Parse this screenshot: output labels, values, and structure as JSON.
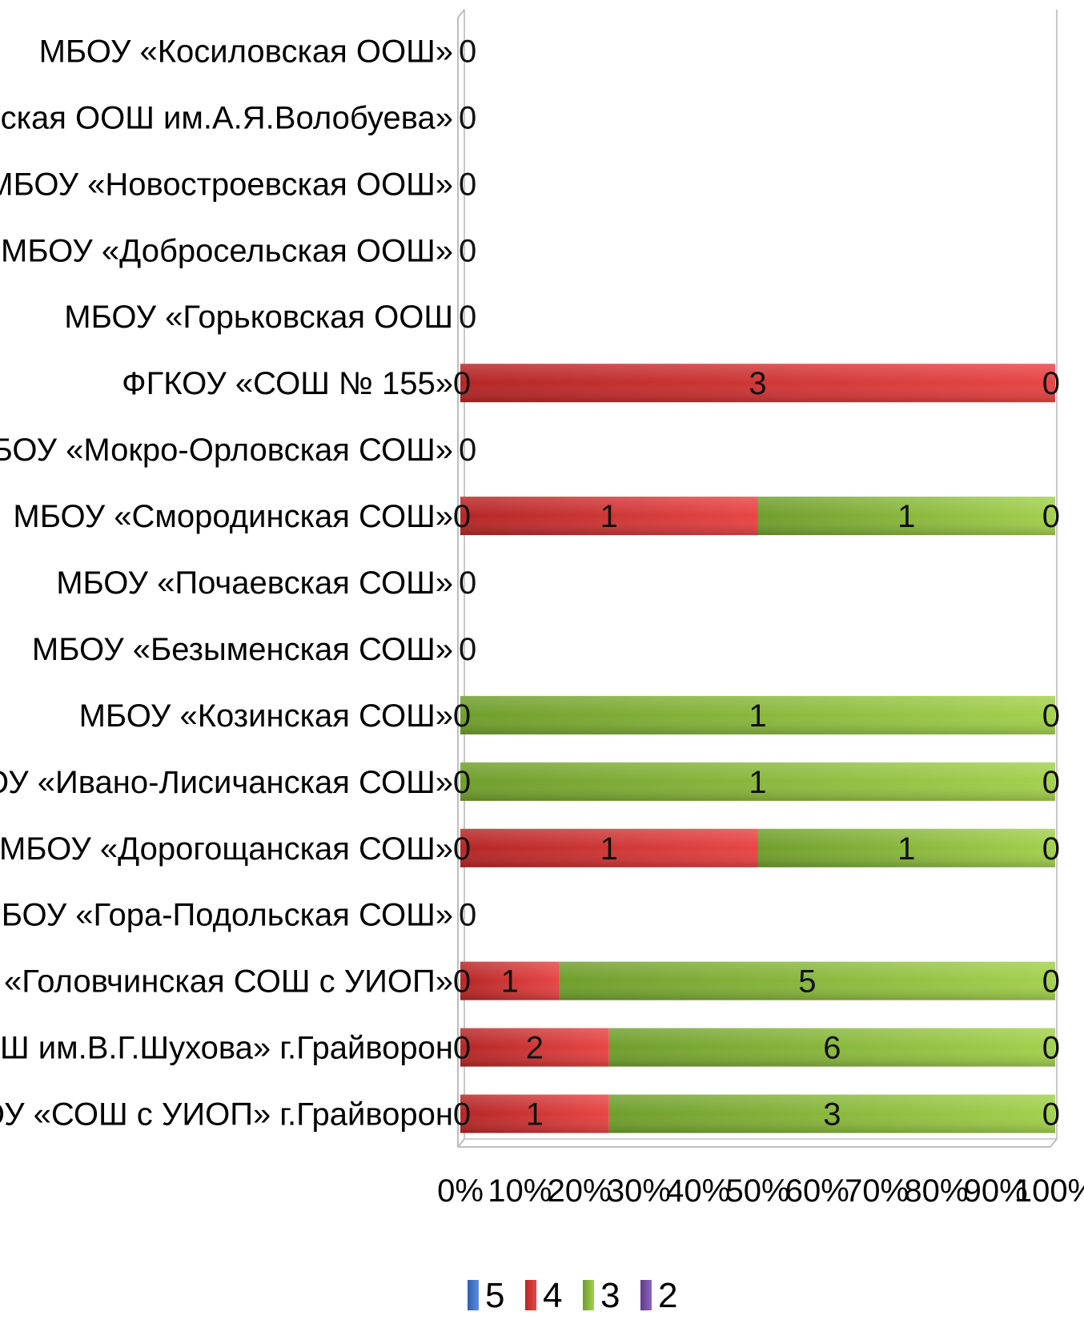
{
  "chart_data": {
    "type": "bar",
    "orientation": "horizontal",
    "stacking": "percent",
    "categories": [
      "МБОУ «Косиловская ООШ»",
      "МБОУ «Дунайская ООШ им.А.Я.Волобуева»",
      "МБОУ «Новостроевская ООШ»",
      "МБОУ «Добросельская ООШ»",
      "МБОУ «Горьковская ООШ",
      "ФГКОУ «СОШ № 155»",
      "МБОУ «Мокро-Орловская СОШ»",
      "МБОУ «Смородинская СОШ»",
      "МБОУ «Почаевская СОШ»",
      "МБОУ «Безыменская СОШ»",
      "МБОУ «Козинская СОШ»",
      "МБОУ «Ивано-Лисичанская СОШ»",
      "МБОУ «Дорогощанская СОШ»",
      "МБОУ «Гора-Подольская СОШ»",
      "МБОУ «Головчинская СОШ с УИОП»",
      "МБОУ «СОШ им.В.Г.Шухова» г.Грайворон",
      "МБОУ «СОШ с УИОП» г.Грайворон"
    ],
    "series": [
      {
        "name": "5",
        "color": "#4472c4",
        "values": [
          0,
          0,
          0,
          0,
          0,
          0,
          0,
          0,
          0,
          0,
          0,
          0,
          0,
          0,
          0,
          0,
          0
        ]
      },
      {
        "name": "4",
        "color": "#d63a3a",
        "values": [
          0,
          0,
          0,
          0,
          0,
          3,
          0,
          1,
          0,
          0,
          0,
          0,
          1,
          0,
          1,
          2,
          1
        ]
      },
      {
        "name": "3",
        "color": "#8cbf3f",
        "values": [
          0,
          0,
          0,
          0,
          0,
          0,
          0,
          1,
          0,
          0,
          1,
          1,
          1,
          0,
          5,
          6,
          3
        ]
      },
      {
        "name": "2",
        "color": "#7a4fa0",
        "values": [
          0,
          0,
          0,
          0,
          0,
          0,
          0,
          0,
          0,
          0,
          0,
          0,
          0,
          0,
          0,
          0,
          0
        ]
      }
    ],
    "x_ticks": [
      "0%",
      "10%",
      "20%",
      "30%",
      "40%",
      "50%",
      "60%",
      "70%",
      "80%",
      "90%",
      "100%"
    ],
    "xlim": [
      0,
      100
    ],
    "legend_position": "bottom",
    "grid": false
  }
}
